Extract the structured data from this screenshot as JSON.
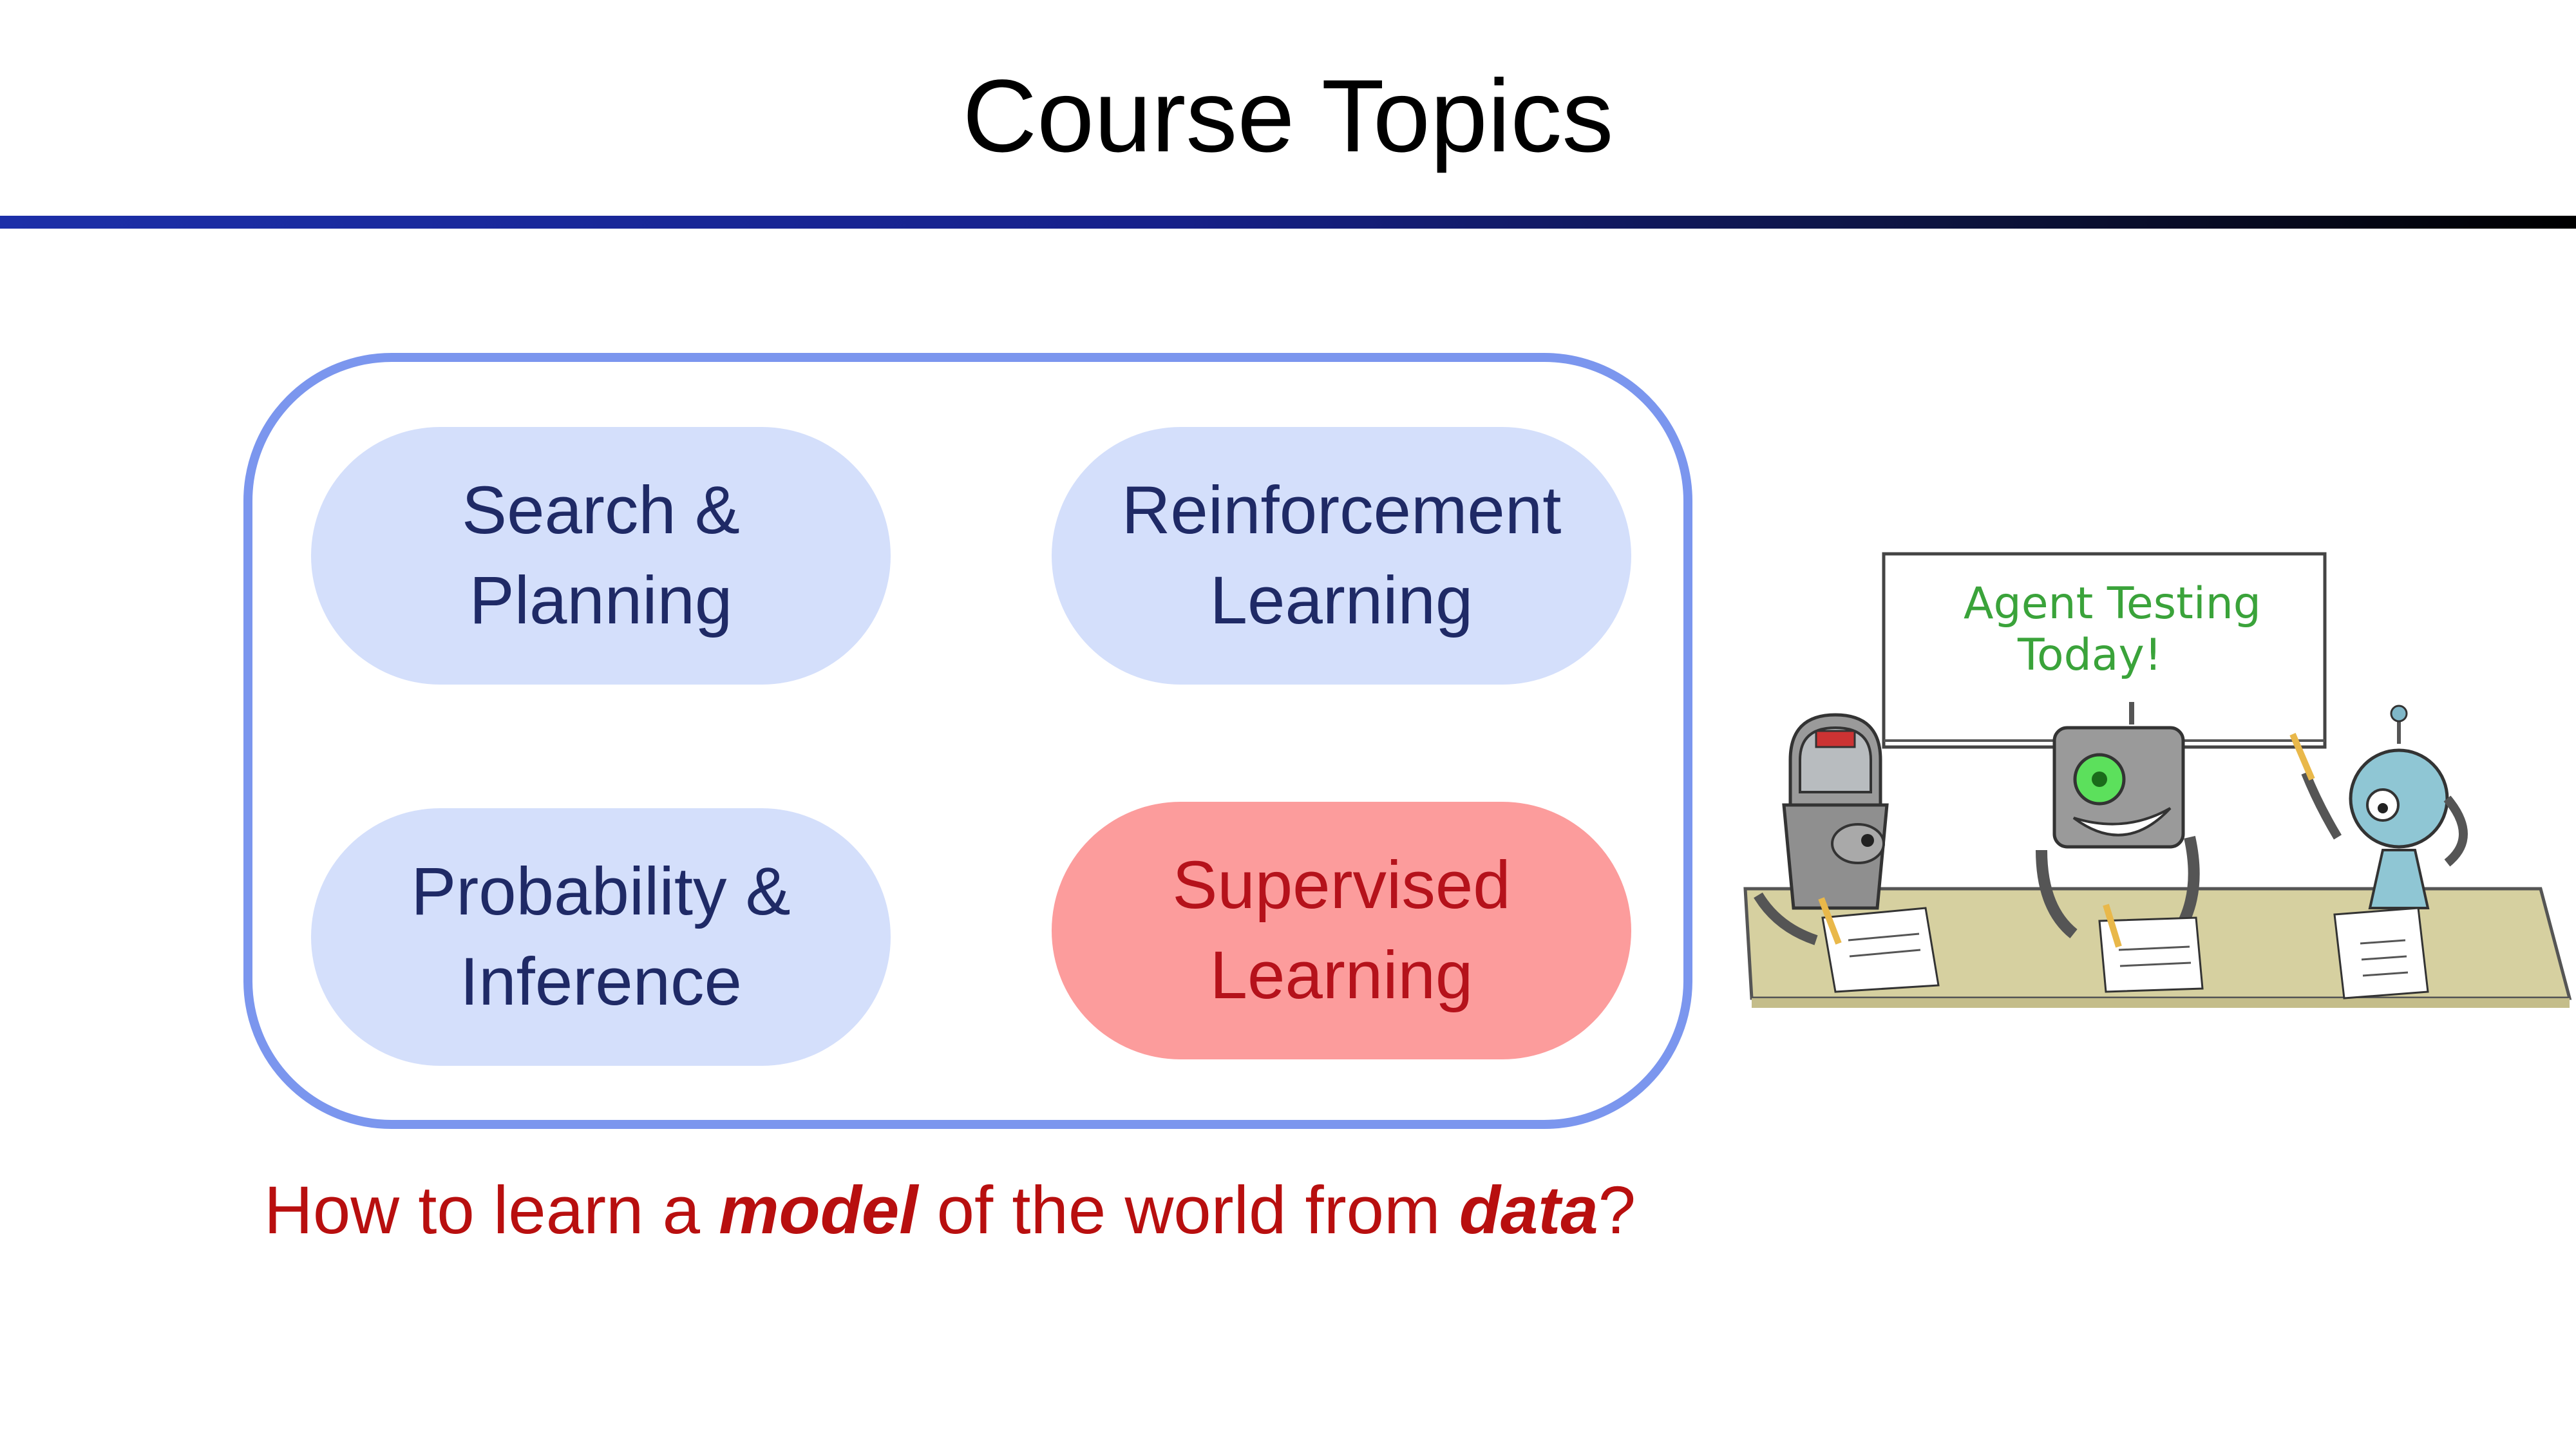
{
  "slide": {
    "title": "Course Topics",
    "topics": [
      {
        "line1": "Search &",
        "line2": "Planning"
      },
      {
        "line1": "Reinforcement",
        "line2": "Learning"
      },
      {
        "line1": "Probability &",
        "line2": "Inference"
      },
      {
        "line1": "Supervised",
        "line2": "Learning",
        "highlighted": true
      }
    ],
    "question": {
      "p1": "How to learn a ",
      "b1": "model",
      "p2": " of the world from ",
      "b2": "data",
      "p3": "?"
    }
  },
  "illustration": {
    "board_line1": "Agent Testing",
    "board_line2": "Today!"
  },
  "colors": {
    "accent": "#7b96ee",
    "pill": "#d4dffb",
    "highlight": "#fc9c9c",
    "highlight_text": "#b5121b",
    "question": "#b80f0f"
  }
}
